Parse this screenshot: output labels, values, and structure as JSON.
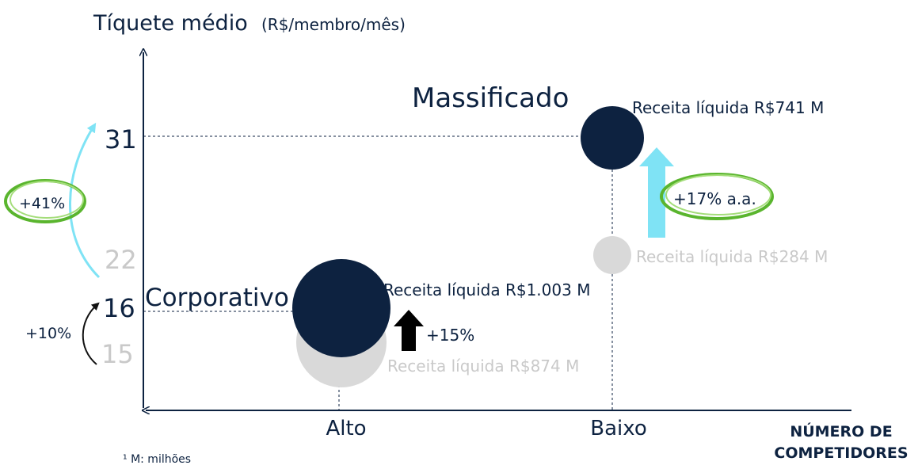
{
  "y_axis": {
    "title": "Tíquete médio",
    "unit": "(R$/membro/mês)"
  },
  "x_axis": {
    "labels": [
      "Alto",
      "Baixo"
    ],
    "title": [
      "NÚMERO DE",
      "COMPETIDORES"
    ]
  },
  "segments": [
    {
      "name": "Corporativo",
      "ticket_before": "15",
      "ticket_after": "16",
      "ticket_growth": "+10%",
      "revenue_before": "Receita líquida R$874 M",
      "revenue_after": "Receita líquida R$1.003 M",
      "revenue_growth": "+15%"
    },
    {
      "name": "Massificado",
      "ticket_before": "22",
      "ticket_after": "31",
      "ticket_growth": "+41%",
      "revenue_before": "Receita líquida R$284 M",
      "revenue_after": "Receita líquida R$741 M",
      "revenue_growth": "+17% a.a."
    }
  ],
  "footnote": "¹ M: milhões"
}
